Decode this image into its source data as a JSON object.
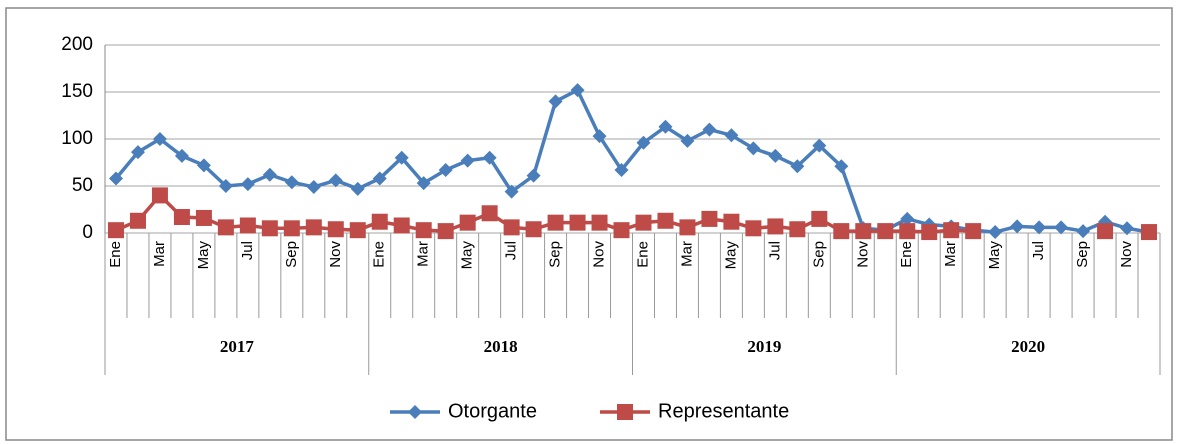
{
  "chart_data": {
    "type": "line",
    "categories": [
      "Ene",
      null,
      "Mar",
      null,
      "May",
      null,
      "Jul",
      null,
      "Sep",
      null,
      "Nov",
      null,
      "Ene",
      null,
      "Mar",
      null,
      "May",
      null,
      "Jul",
      null,
      "Sep",
      null,
      "Nov",
      null,
      "Ene",
      null,
      "Mar",
      null,
      "May",
      null,
      "Jul",
      null,
      "Sep",
      null,
      "Nov",
      null,
      "Ene",
      null,
      "Mar",
      null,
      "May",
      null,
      "Jul",
      null,
      "Sep",
      null,
      "Nov",
      null
    ],
    "groups": [
      "2017",
      "2018",
      "2019",
      "2020"
    ],
    "series": [
      {
        "name": "Otorgante",
        "color": "#4a7ebb",
        "marker": "diamond",
        "values": [
          58,
          86,
          100,
          82,
          72,
          50,
          52,
          62,
          54,
          49,
          56,
          47,
          58,
          80,
          53,
          67,
          77,
          80,
          44,
          61,
          140,
          152,
          103,
          67,
          96,
          113,
          98,
          110,
          104,
          90,
          82,
          71,
          93,
          71,
          5,
          3,
          15,
          9,
          7,
          3,
          1,
          7,
          6,
          6,
          2,
          12,
          5,
          1
        ]
      },
      {
        "name": "Representante",
        "color": "#be4b48",
        "marker": "square",
        "values": [
          3,
          13,
          40,
          17,
          16,
          6,
          8,
          5,
          5,
          6,
          4,
          3,
          12,
          8,
          3,
          2,
          11,
          21,
          6,
          4,
          11,
          11,
          11,
          3,
          11,
          13,
          6,
          15,
          12,
          5,
          7,
          4,
          15,
          2,
          2,
          2,
          2,
          1,
          3,
          2,
          null,
          null,
          null,
          null,
          null,
          2,
          null,
          1
        ]
      }
    ],
    "ylim": [
      0,
      200
    ],
    "yticks": [
      0,
      50,
      100,
      150,
      200
    ],
    "grid": true,
    "legend": "bottom"
  }
}
